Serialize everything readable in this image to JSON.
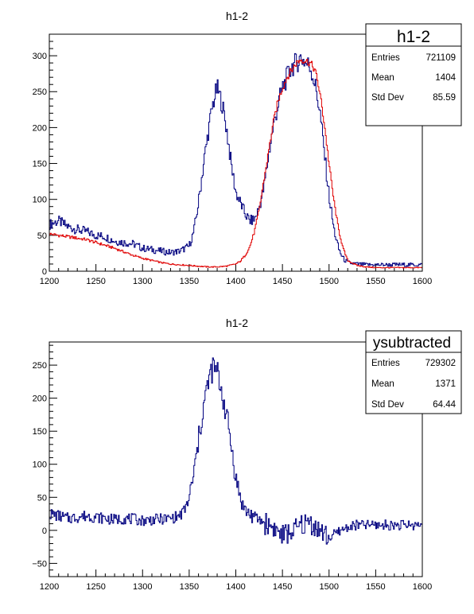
{
  "colors": {
    "reference": "#00007F",
    "overlay": "#E00000",
    "axis": "#000000",
    "background": "#ffffff"
  },
  "chart_data": [
    {
      "type": "histogram",
      "title": "h1-2",
      "xlim": [
        1200,
        1600
      ],
      "ylim": [
        0,
        330
      ],
      "xticks": [
        1200,
        1250,
        1300,
        1350,
        1400,
        1450,
        1500,
        1550,
        1600
      ],
      "yticks": [
        0,
        50,
        100,
        150,
        200,
        250,
        300
      ],
      "grid": false,
      "series": [
        {
          "color": "#00007F",
          "x": [
            1200,
            1210,
            1220,
            1230,
            1240,
            1250,
            1260,
            1270,
            1280,
            1290,
            1300,
            1310,
            1320,
            1330,
            1340,
            1350,
            1355,
            1360,
            1365,
            1370,
            1375,
            1380,
            1385,
            1390,
            1395,
            1400,
            1405,
            1410,
            1415,
            1420,
            1425,
            1430,
            1435,
            1440,
            1445,
            1450,
            1455,
            1460,
            1465,
            1470,
            1475,
            1480,
            1485,
            1490,
            1495,
            1500,
            1505,
            1510,
            1515,
            1520,
            1530,
            1540,
            1550,
            1560,
            1570,
            1580,
            1590,
            1600
          ],
          "y": [
            65,
            70,
            62,
            58,
            55,
            50,
            48,
            42,
            40,
            38,
            32,
            30,
            28,
            26,
            28,
            35,
            55,
            95,
            145,
            190,
            230,
            255,
            235,
            200,
            150,
            110,
            95,
            80,
            70,
            72,
            88,
            115,
            160,
            200,
            230,
            255,
            270,
            285,
            290,
            298,
            290,
            285,
            260,
            225,
            165,
            105,
            60,
            32,
            18,
            12,
            10,
            9,
            9,
            9,
            9,
            9,
            9,
            9
          ]
        },
        {
          "color": "#E00000",
          "x": [
            1200,
            1210,
            1220,
            1230,
            1240,
            1250,
            1260,
            1270,
            1280,
            1290,
            1300,
            1310,
            1320,
            1330,
            1340,
            1350,
            1360,
            1370,
            1380,
            1390,
            1400,
            1405,
            1410,
            1415,
            1420,
            1425,
            1430,
            1435,
            1440,
            1445,
            1450,
            1455,
            1460,
            1465,
            1470,
            1475,
            1480,
            1485,
            1490,
            1495,
            1500,
            1505,
            1510,
            1515,
            1520,
            1530,
            1540,
            1550,
            1560,
            1570,
            1580,
            1590,
            1600
          ],
          "y": [
            52,
            50,
            48,
            46,
            44,
            40,
            36,
            32,
            27,
            22,
            18,
            15,
            12,
            10,
            9,
            8,
            7,
            6,
            6,
            7,
            10,
            14,
            22,
            34,
            55,
            85,
            125,
            165,
            205,
            235,
            255,
            270,
            280,
            290,
            295,
            293,
            290,
            280,
            250,
            205,
            150,
            100,
            60,
            32,
            15,
            8,
            6,
            5,
            5,
            5,
            5,
            5,
            5
          ]
        }
      ],
      "stats": {
        "name": "h1-2",
        "entries_label": "Entries",
        "entries": "721109",
        "mean_label": "Mean",
        "mean": "1404",
        "stddev_label": "Std Dev",
        "stddev": "85.59"
      }
    },
    {
      "type": "histogram",
      "title": "h1-2",
      "xlim": [
        1200,
        1600
      ],
      "ylim": [
        -70,
        285
      ],
      "xticks": [
        1200,
        1250,
        1300,
        1350,
        1400,
        1450,
        1500,
        1550,
        1600
      ],
      "yticks": [
        -50,
        0,
        50,
        100,
        150,
        200,
        250
      ],
      "grid": false,
      "series": [
        {
          "color": "#00007F",
          "x": [
            1200,
            1210,
            1220,
            1230,
            1240,
            1250,
            1260,
            1270,
            1280,
            1290,
            1300,
            1310,
            1320,
            1330,
            1340,
            1345,
            1350,
            1355,
            1360,
            1365,
            1370,
            1375,
            1380,
            1385,
            1390,
            1395,
            1400,
            1405,
            1410,
            1420,
            1430,
            1440,
            1450,
            1460,
            1470,
            1480,
            1490,
            1500,
            1510,
            1520,
            1530,
            1540,
            1550,
            1560,
            1570,
            1580,
            1590,
            1600
          ],
          "y": [
            25,
            22,
            18,
            20,
            22,
            20,
            18,
            16,
            18,
            17,
            15,
            16,
            17,
            18,
            22,
            30,
            48,
            85,
            135,
            185,
            220,
            245,
            240,
            210,
            175,
            130,
            80,
            48,
            30,
            20,
            12,
            5,
            -8,
            -2,
            8,
            12,
            0,
            -12,
            -2,
            5,
            8,
            8,
            8,
            8,
            8,
            8,
            8,
            8
          ]
        }
      ],
      "stats": {
        "name": "ysubtracted",
        "entries_label": "Entries",
        "entries": "729302",
        "mean_label": "Mean",
        "mean": "1371",
        "stddev_label": "Std Dev",
        "stddev": "64.44"
      }
    }
  ]
}
